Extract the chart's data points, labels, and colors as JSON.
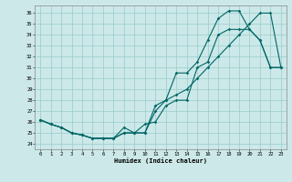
{
  "xlabel": "Humidex (Indice chaleur)",
  "bg_color": "#cce8e8",
  "line_color": "#006666",
  "grid_color": "#99cccc",
  "xlim": [
    -0.5,
    23.5
  ],
  "ylim": [
    23.5,
    36.7
  ],
  "yticks": [
    24,
    25,
    26,
    27,
    28,
    29,
    30,
    31,
    32,
    33,
    34,
    35,
    36
  ],
  "xticks": [
    0,
    1,
    2,
    3,
    4,
    5,
    6,
    7,
    8,
    9,
    10,
    11,
    12,
    13,
    14,
    15,
    16,
    17,
    18,
    19,
    20,
    21,
    22,
    23
  ],
  "line1_x": [
    0,
    1,
    2,
    3,
    4,
    5,
    6,
    7,
    8,
    9,
    10,
    11,
    12,
    13,
    14,
    15,
    16,
    17,
    18,
    19,
    20,
    21,
    22,
    23
  ],
  "line1_y": [
    26.2,
    25.8,
    25.5,
    25.0,
    24.8,
    24.5,
    24.5,
    24.5,
    25.0,
    25.0,
    25.0,
    27.5,
    28.0,
    30.5,
    30.5,
    31.5,
    33.5,
    35.5,
    36.2,
    36.2,
    34.5,
    33.5,
    31.0,
    31.0
  ],
  "line2_x": [
    0,
    1,
    2,
    3,
    4,
    5,
    6,
    7,
    8,
    9,
    10,
    11,
    12,
    13,
    14,
    15,
    16,
    17,
    18,
    19,
    20,
    21,
    22,
    23
  ],
  "line2_y": [
    26.2,
    25.8,
    25.5,
    25.0,
    24.8,
    24.5,
    24.5,
    24.5,
    25.5,
    25.0,
    25.8,
    26.0,
    27.5,
    28.0,
    28.0,
    31.0,
    31.5,
    34.0,
    34.5,
    34.5,
    34.5,
    33.5,
    31.0,
    31.0
  ],
  "line3_x": [
    0,
    1,
    2,
    3,
    4,
    5,
    6,
    7,
    8,
    9,
    10,
    11,
    12,
    13,
    14,
    15,
    16,
    17,
    18,
    19,
    20,
    21,
    22,
    23
  ],
  "line3_y": [
    26.2,
    25.8,
    25.5,
    25.0,
    24.8,
    24.5,
    24.5,
    24.5,
    25.0,
    25.0,
    25.0,
    27.0,
    28.0,
    28.5,
    29.0,
    30.0,
    31.0,
    32.0,
    33.0,
    34.0,
    35.0,
    36.0,
    36.0,
    31.0
  ]
}
